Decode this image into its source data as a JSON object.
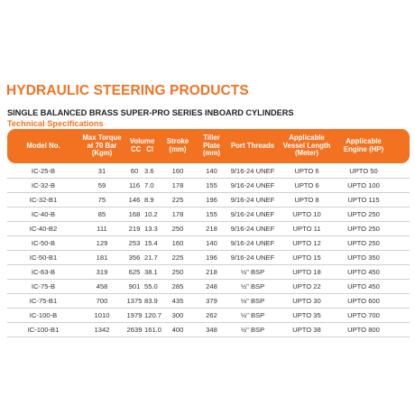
{
  "title": "HYDRAULIC STEERING PRODUCTS",
  "subtitle": "SINGLE BALANCED BRASS SUPER-PRO SERIES INBOARD CYLINDERS",
  "section": "Technical Specifications",
  "colors": {
    "accent": "#f37221"
  },
  "table": {
    "headers": {
      "model": "Model No.",
      "torque": "Max Torque at 70 Bar (Kgm)",
      "volume": "Volume",
      "volume_cc": "CC",
      "volume_ci": "CI",
      "stroke": "Stroke (mm)",
      "tiller": "Tiller Plate (mm)",
      "port": "Port Threads",
      "vessel": "Applicable Vessel Length (Meter)",
      "engine": "Applicable Engine (HP)"
    },
    "rows": [
      {
        "model": "IC-25-B",
        "torque": "31",
        "cc": "60",
        "ci": "3.6",
        "stroke": "160",
        "tiller": "140",
        "port": "9/16-24 UNEF",
        "vessel": "UPTO 6",
        "engine": "UPTO 50"
      },
      {
        "model": "IC-32-B",
        "torque": "59",
        "cc": "116",
        "ci": "7.0",
        "stroke": "178",
        "tiller": "155",
        "port": "9/16-24 UNEF",
        "vessel": "UPTO 6",
        "engine": "UPTO 100"
      },
      {
        "model": "IC-32-B1",
        "torque": "75",
        "cc": "146",
        "ci": "8.9",
        "stroke": "225",
        "tiller": "196",
        "port": "9/16-24 UNEF",
        "vessel": "UPTO 8",
        "engine": "UPTO 115"
      },
      {
        "model": "IC-40-B",
        "torque": "85",
        "cc": "168",
        "ci": "10.2",
        "stroke": "178",
        "tiller": "155",
        "port": "9/16-24 UNEF",
        "vessel": "UPTO 10",
        "engine": "UPTO 250"
      },
      {
        "model": "IC-40-B2",
        "torque": "111",
        "cc": "219",
        "ci": "13.3",
        "stroke": "250",
        "tiller": "218",
        "port": "9/16-24 UNEF",
        "vessel": "UPTO 11",
        "engine": "UPTO 250"
      },
      {
        "model": "IC-50-B",
        "torque": "129",
        "cc": "253",
        "ci": "15.4",
        "stroke": "160",
        "tiller": "140",
        "port": "9/16-24 UNEF",
        "vessel": "UPTO 12",
        "engine": "UPTO 250"
      },
      {
        "model": "IC-50-B1",
        "torque": "181",
        "cc": "356",
        "ci": "21.7",
        "stroke": "225",
        "tiller": "196",
        "port": "9/16-24 UNEF",
        "vessel": "UPTO 15",
        "engine": "UPTO 350"
      },
      {
        "model": "IC-63-B",
        "torque": "319",
        "cc": "625",
        "ci": "38.1",
        "stroke": "250",
        "tiller": "218",
        "port": "½\" BSP",
        "vessel": "UPTO 18",
        "engine": "UPTO 450"
      },
      {
        "model": "IC-75-B",
        "torque": "458",
        "cc": "901",
        "ci": "55.0",
        "stroke": "285",
        "tiller": "248",
        "port": "½\" BSP",
        "vessel": "UPTO 22",
        "engine": "UPTO 450"
      },
      {
        "model": "IC-75-B1",
        "torque": "700",
        "cc": "1375",
        "ci": "83.9",
        "stroke": "435",
        "tiller": "379",
        "port": "½\" BSP",
        "vessel": "UPTO 30",
        "engine": "UPTO 600"
      },
      {
        "model": "IC-100-B",
        "torque": "1010",
        "cc": "1979",
        "ci": "120.7",
        "stroke": "300",
        "tiller": "262",
        "port": "½\" BSP",
        "vessel": "UPTO 35",
        "engine": "UPTO 700"
      },
      {
        "model": "IC-100-B1",
        "torque": "1342",
        "cc": "2639",
        "ci": "161.0",
        "stroke": "400",
        "tiller": "348",
        "port": "½\" BSP",
        "vessel": "UPTO 38",
        "engine": "UPTO 800"
      }
    ]
  }
}
